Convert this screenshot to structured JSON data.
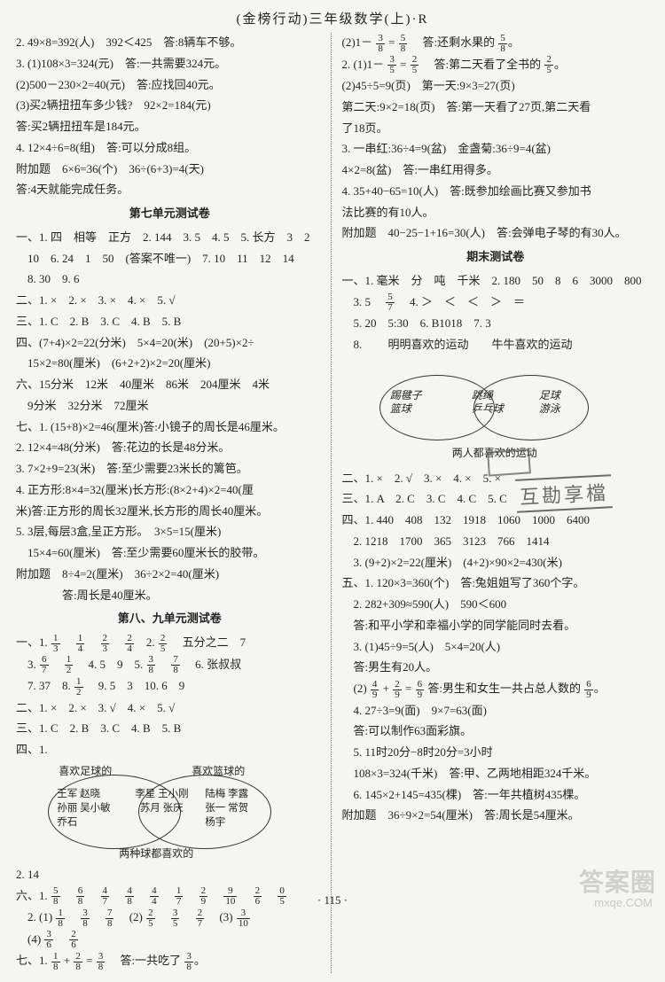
{
  "header": "(金榜行动)三年级数学(上)·R",
  "footer": "· 115 ·",
  "watermark_big": "答案圈",
  "watermark_small": "mxqe.COM",
  "stamp_text": "互勘享檔",
  "left": {
    "l1": "2. 49×8=392(人)　392＜425　答:8辆车不够。",
    "l2": "3. (1)108×3=324(元)　答:一共需要324元。",
    "l3": "(2)500－230×2=40(元)　答:应找回40元。",
    "l4": "(3)买2辆扭扭车多少钱?　92×2=184(元)",
    "l5": "答:买2辆扭扭车是184元。",
    "l6": "4. 12×4÷6=8(组)　答:可以分成8组。",
    "l7": "附加题　6×6=36(个)　36÷(6+3)=4(天)",
    "l8": "答:4天就能完成任务。",
    "s7": "第七单元测试卷",
    "l9": "一、1. 四　相等　正方　2. 144　3. 5　4. 5　5. 长方　3　2",
    "l10": "　10　6. 24　1　50　(答案不唯一)　7. 10　11　12　14",
    "l11": "　8. 30　9. 6",
    "l12": "二、1. ×　2. ×　3. ×　4. ×　5. √",
    "l13": "三、1. C　2. B　3. C　4. B　5. B",
    "l14": "四、(7+4)×2=22(分米)　5×4=20(米)　(20+5)×2÷",
    "l15": "　15×2=80(厘米)　(6+2+2)×2=20(厘米)",
    "l16": "六、15分米　12米　40厘米　86米　204厘米　4米",
    "l17": "　9分米　32分米　72厘米",
    "l18": "七、1. (15+8)×2=46(厘米)答:小镜子的周长是46厘米。",
    "l19": "2. 12×4=48(分米)　答:花边的长是48分米。",
    "l20": "3. 7×2+9=23(米)　答:至少需要23米长的篱笆。",
    "l21": "4. 正方形:8×4=32(厘米)长方形:(8×2+4)×2=40(厘",
    "l22": "米)答:正方形的周长32厘米,长方形的周长40厘米。",
    "l23": "5. 3层,每层3盒,呈正方形。　3×5=15(厘米)",
    "l24": "　15×4=60(厘米)　答:至少需要60厘米长的胶带。",
    "l25": "附加题　8÷4=2(厘米)　36÷2×2=40(厘米)",
    "l26": "　　　　答:周长是40厘米。",
    "s89": "第八、九单元测试卷",
    "f_1a": "一、1. ",
    "f_1b": "　五分之二　7",
    "f_3": "　3. ",
    "f_4": "　4. 5　9　5. ",
    "f_6": "　6. 张叔叔",
    "l27": "　7. 37　8. ",
    "l27b": "　9. 5　3　10. 6　9",
    "l28": "二、1. ×　2. ×　3. √　4. ×　5. √",
    "l29": "三、1. C　2. B　3. C　4. B　5. B",
    "l30": "四、1.",
    "venn_tl": "喜欢足球的",
    "venn_tr": "喜欢篮球的",
    "venn_l": "王军 赵晓\n孙丽 吴小敏\n乔石",
    "venn_m": "李星 王小刚\n苏月 张庆",
    "venn_r": "陆梅 李露\n张一 常贺\n杨宇",
    "venn_b": "两种球都喜欢的",
    "l31": "2. 14",
    "l32a": "六、1. ",
    "l33a": "　2. (1)",
    "l33b": "　(2)",
    "l33c": "　(3)",
    "l34a": "　(4)",
    "l35a": "七、1. ",
    "l35b": "　答:一共吃了"
  },
  "right": {
    "r1a": "(2)1－",
    "r1b": "　答:还剩水果的",
    "r2a": "2. (1)1－",
    "r2b": "　答:第二天看了全书的",
    "r3": "(2)45÷5=9(页)　第一天:9×3=27(页)",
    "r4": "第二天:9×2=18(页)　答:第一天看了27页,第二天看",
    "r5": "了18页。",
    "r6": "3. 一串红:36÷4=9(盆)　金盏菊:36÷9=4(盆)",
    "r7": "4×2=8(盆)　答:一串红用得多。",
    "r8": "4. 35+40−65=10(人)　答:既参加绘画比赛又参加书",
    "r9": "法比赛的有10人。",
    "r10": "附加题　40−25−1+16=30(人)　答:会弹电子琴的有30人。",
    "sQM": "期末测试卷",
    "r11": "一、1. 毫米　分　吨　千米　2. 180　50　8　6　3000　800",
    "r12a": "　3. 5　",
    "r12b": "　4. ＞　＜　＜　＞　＝",
    "r13": "　5. 20　5:30　6. B1018　7. 3",
    "r14": "　8. 　　明明喜欢的运动　　牛牛喜欢的运动",
    "venn2_l": "踢毽子\n篮球",
    "venn2_m": "跳绳\n乒乓球",
    "venn2_r": "足球\n游泳",
    "venn2_b": "两人都喜欢的运动",
    "r15": "二、1. ×　2. √　3. ×　4. ×　5. ×",
    "r16": "三、1. A　2. C　3. C　4. C　5. C",
    "r17": "四、1. 440　408　132　1918　1060　1000　6400",
    "r18": "　2. 1218　1700　365　3123　766　1414",
    "r19": "　3. (9+2)×2=22(厘米)　(4+2)×90×2=430(米)",
    "r20": "五、1. 120×3=360(个)　答:兔姐姐写了360个字。",
    "r21": "　2. 282+309≈590(人)　590＜600",
    "r22": "　答:和平小学和幸福小学的同学能同时去看。",
    "r23": "　3. (1)45÷9=5(人)　5×4=20(人)",
    "r24": "　答:男生有20人。",
    "r25a": "　(2)",
    "r25b": "答:男生和女生一共占总人数的",
    "r26": "　4. 27÷3=9(面)　9×7=63(面)",
    "r27": "　答:可以制作63面彩旗。",
    "r28": "　5. 11时20分−8时20分=3小时",
    "r29": "　108×3=324(千米)　答:甲、乙两地相距324千米。",
    "r30": "　6. 145×2+145=435(棵)　答:一年共植树435棵。",
    "r31": "附加题　36÷9×2=54(厘米)　答:周长是54厘米。"
  }
}
